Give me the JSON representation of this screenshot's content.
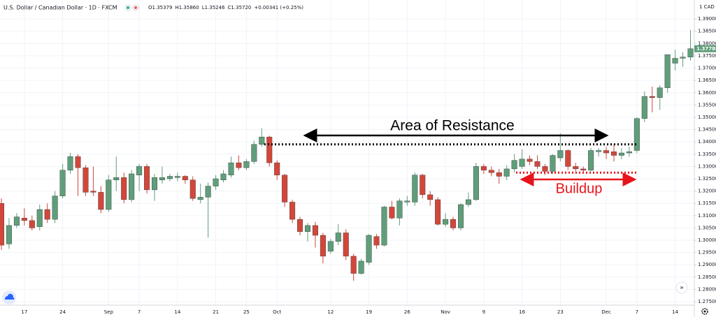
{
  "chart_data": {
    "type": "candlestick",
    "title": "U.S. Dollar / Canadian Dollar · 1D · FXCM",
    "ohlc_legend": [
      "O1.35379",
      "H1.35860",
      "L1.35246",
      "C1.35720",
      "+0.00341 (+0.25%)"
    ],
    "currency": "1 CAD",
    "last_price": 1.37788,
    "up_color": "#5f9e7a",
    "down_color": "#d2473a",
    "grid": true,
    "categories": [
      null,
      null,
      null,
      "17",
      null,
      null,
      null,
      null,
      "24",
      null,
      null,
      null,
      null,
      null,
      "Sep",
      null,
      null,
      null,
      "7",
      null,
      null,
      null,
      null,
      "14",
      null,
      null,
      null,
      null,
      "21",
      null,
      null,
      null,
      "25",
      null,
      null,
      null,
      "Oct",
      null,
      null,
      null,
      null,
      null,
      null,
      "12",
      null,
      null,
      null,
      null,
      "19",
      null,
      null,
      null,
      null,
      "26",
      null,
      null,
      null,
      null,
      "Nov",
      null,
      null,
      null,
      null,
      "9",
      null,
      null,
      null,
      null,
      "16",
      null,
      null,
      null,
      null,
      "23",
      null,
      null,
      null,
      null,
      null,
      "Dec",
      null,
      null,
      null,
      "7",
      null,
      null,
      null,
      null,
      "14",
      null,
      null
    ],
    "series": [
      {
        "open": [
          1.315,
          1.2985,
          1.306,
          1.309,
          1.308,
          1.3055,
          1.3125,
          1.3085,
          1.318,
          1.3285,
          1.334,
          1.3295,
          1.32,
          1.3195,
          1.3125,
          1.3245,
          1.3255,
          1.3165,
          1.3265,
          1.33,
          1.3205,
          1.3245,
          1.325,
          1.3255,
          1.326,
          1.3245,
          1.3165,
          1.3175,
          1.322,
          1.3245,
          1.3265,
          1.3315,
          1.3295,
          1.332,
          1.339,
          1.342,
          1.3315,
          1.3265,
          1.3155,
          1.3085,
          1.3035,
          1.306,
          1.302,
          1.2955,
          1.2995,
          1.303,
          1.2935,
          1.2865,
          1.291,
          1.3015,
          1.298,
          1.3135,
          1.309,
          1.3155,
          1.3155,
          1.3265,
          1.3185,
          1.3165,
          1.3065,
          1.3085,
          1.305,
          1.3145,
          1.3165,
          1.33,
          1.3285,
          1.3275,
          1.326,
          1.329,
          1.33,
          1.333,
          1.332,
          1.33,
          1.328,
          1.3335,
          1.3365,
          1.33,
          1.329,
          1.3285,
          1.336,
          1.3365,
          1.336,
          1.3345,
          1.3355,
          1.3365,
          1.3495,
          1.3585,
          1.358,
          1.362,
          1.372,
          1.374,
          1.3745
        ],
        "high": [
          1.317,
          1.309,
          1.311,
          1.313,
          1.31,
          1.3145,
          1.315,
          1.32,
          1.331,
          1.3355,
          1.335,
          1.3305,
          1.33,
          1.322,
          1.3265,
          1.334,
          1.3275,
          1.3285,
          1.331,
          1.331,
          1.327,
          1.33,
          1.327,
          1.3275,
          1.3265,
          1.326,
          1.323,
          1.3235,
          1.3265,
          1.3285,
          1.334,
          1.3345,
          1.333,
          1.3405,
          1.3455,
          1.3425,
          1.3325,
          1.327,
          1.3165,
          1.3095,
          1.307,
          1.3075,
          1.303,
          1.3005,
          1.3065,
          1.3045,
          1.2945,
          1.2925,
          1.3025,
          1.3025,
          1.314,
          1.316,
          1.317,
          1.318,
          1.3275,
          1.327,
          1.32,
          1.3175,
          1.311,
          1.3095,
          1.315,
          1.3195,
          1.3315,
          1.331,
          1.33,
          1.329,
          1.3305,
          1.335,
          1.337,
          1.3345,
          1.3345,
          1.331,
          1.335,
          1.3435,
          1.337,
          1.3315,
          1.33,
          1.3375,
          1.3375,
          1.338,
          1.339,
          1.3375,
          1.338,
          1.35,
          1.3605,
          1.3625,
          1.363,
          1.3755,
          1.3775,
          1.3765,
          1.3855
        ],
        "low": [
          1.296,
          1.2965,
          1.305,
          1.306,
          1.304,
          1.304,
          1.307,
          1.307,
          1.317,
          1.327,
          1.318,
          1.318,
          1.318,
          1.311,
          1.3115,
          1.32,
          1.315,
          1.3155,
          1.32,
          1.319,
          1.316,
          1.323,
          1.324,
          1.324,
          1.323,
          1.316,
          1.315,
          1.301,
          1.3205,
          1.3235,
          1.3255,
          1.3285,
          1.3285,
          1.331,
          1.338,
          1.33,
          1.3245,
          1.3135,
          1.307,
          1.302,
          1.2995,
          1.297,
          1.2905,
          1.2945,
          1.298,
          1.292,
          1.2835,
          1.286,
          1.29,
          1.2965,
          1.2975,
          1.3085,
          1.306,
          1.314,
          1.314,
          1.317,
          1.314,
          1.306,
          1.3055,
          1.304,
          1.304,
          1.3135,
          1.316,
          1.327,
          1.326,
          1.323,
          1.3245,
          1.3275,
          1.329,
          1.3305,
          1.329,
          1.3265,
          1.327,
          1.332,
          1.3285,
          1.328,
          1.3275,
          1.328,
          1.334,
          1.333,
          1.332,
          1.333,
          1.334,
          1.3355,
          1.348,
          1.352,
          1.353,
          1.36,
          1.369,
          1.3705,
          1.373
        ],
        "close": [
          1.298,
          1.306,
          1.3095,
          1.308,
          1.305,
          1.3125,
          1.3085,
          1.318,
          1.3285,
          1.334,
          1.3295,
          1.3195,
          1.3195,
          1.3125,
          1.3245,
          1.3255,
          1.3165,
          1.327,
          1.33,
          1.3205,
          1.3255,
          1.3255,
          1.326,
          1.326,
          1.3245,
          1.317,
          1.3175,
          1.322,
          1.325,
          1.327,
          1.3315,
          1.3295,
          1.332,
          1.339,
          1.342,
          1.3315,
          1.3265,
          1.3155,
          1.3085,
          1.3035,
          1.306,
          1.302,
          1.2935,
          1.2995,
          1.303,
          1.2935,
          1.2865,
          1.2915,
          1.302,
          1.298,
          1.3135,
          1.309,
          1.316,
          1.316,
          1.3265,
          1.3185,
          1.3165,
          1.3065,
          1.3085,
          1.305,
          1.3145,
          1.3165,
          1.33,
          1.3285,
          1.3275,
          1.326,
          1.329,
          1.3325,
          1.333,
          1.332,
          1.33,
          1.328,
          1.3345,
          1.3365,
          1.33,
          1.329,
          1.3285,
          1.3365,
          1.3365,
          1.3355,
          1.3345,
          1.3355,
          1.336,
          1.3495,
          1.3585,
          1.358,
          1.362,
          1.3755,
          1.374,
          1.3745,
          1.3779
        ]
      }
    ],
    "ylim": [
      1.2736,
      1.3977
    ],
    "yticks": [
      {
        "value": 1.275,
        "label": "1.27500"
      },
      {
        "value": 1.28,
        "label": "1.28000"
      },
      {
        "value": 1.285,
        "label": "1.28500"
      },
      {
        "value": 1.29,
        "label": "1.29000"
      },
      {
        "value": 1.295,
        "label": "1.29500"
      },
      {
        "value": 1.3,
        "label": "1.30000"
      },
      {
        "value": 1.305,
        "label": "1.30500"
      },
      {
        "value": 1.31,
        "label": "1.31000"
      },
      {
        "value": 1.315,
        "label": "1.31500"
      },
      {
        "value": 1.32,
        "label": "1.32000"
      },
      {
        "value": 1.325,
        "label": "1.32500"
      },
      {
        "value": 1.33,
        "label": "1.33000"
      },
      {
        "value": 1.335,
        "label": "1.33500"
      },
      {
        "value": 1.34,
        "label": "1.34000"
      },
      {
        "value": 1.345,
        "label": "1.34500"
      },
      {
        "value": 1.35,
        "label": "1.35000"
      },
      {
        "value": 1.355,
        "label": "1.35500"
      },
      {
        "value": 1.36,
        "label": "1.36000"
      },
      {
        "value": 1.365,
        "label": "1.36500"
      },
      {
        "value": 1.37,
        "label": "1.37000"
      },
      {
        "value": 1.375,
        "label": "1.37500"
      },
      {
        "value": 1.38,
        "label": "1.38000"
      },
      {
        "value": 1.385,
        "label": "1.38500"
      },
      {
        "value": 1.39,
        "label": "1.39000"
      }
    ],
    "annotations": [
      {
        "text": "Area of Resistance",
        "level": 1.339,
        "color": "#000000"
      },
      {
        "text": "Buildup",
        "level": 1.3275,
        "color": "#e8141b"
      }
    ]
  }
}
